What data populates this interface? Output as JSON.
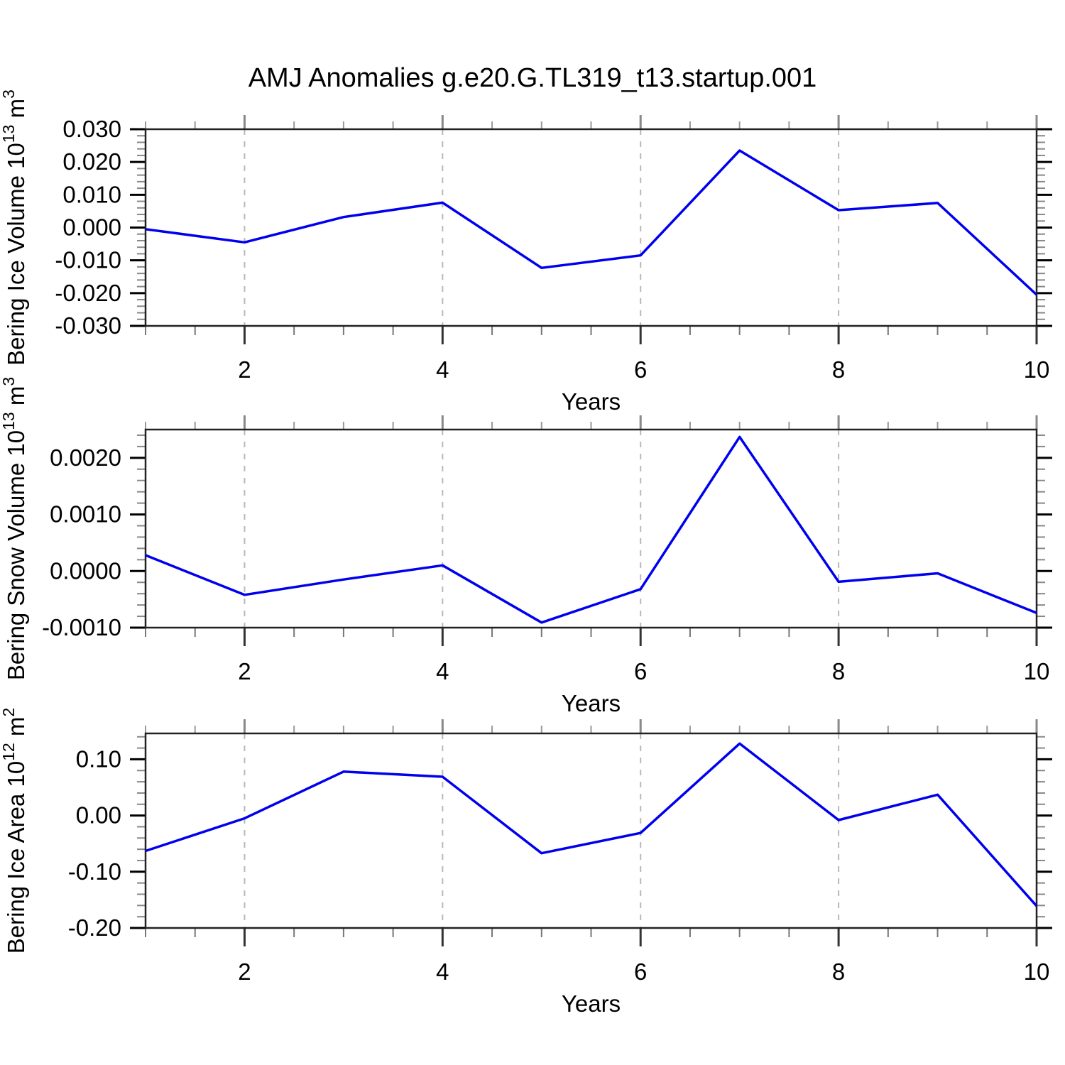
{
  "title": "AMJ Anomalies g.e20.G.TL319_t13.startup.001",
  "line_color": "#0000ee",
  "grid_color": "#b8b8b8",
  "chart_data": [
    {
      "type": "line",
      "ylabel": "Bering Ice Volume 10^13 m^3",
      "ylabel_parts": [
        {
          "text": "Bering Ice Volume 10",
          "sup": false
        },
        {
          "text": "13",
          "sup": true
        },
        {
          "text": " m",
          "sup": false
        },
        {
          "text": "3",
          "sup": true
        }
      ],
      "xlabel": "Years",
      "x": [
        1,
        2,
        3,
        4,
        5,
        6,
        7,
        8,
        9,
        10
      ],
      "values": [
        -0.0005,
        -0.0045,
        0.0032,
        0.0076,
        -0.0123,
        -0.0085,
        0.0235,
        0.0053,
        0.0075,
        -0.0205
      ],
      "xlim": [
        1,
        10
      ],
      "ylim": [
        -0.03,
        0.03
      ],
      "ytick_values": [
        0.03,
        0.02,
        0.01,
        0.0,
        -0.01,
        -0.02,
        -0.03
      ],
      "ytick_labels": [
        "0.030",
        "0.020",
        "0.010",
        "0.000",
        "-0.010",
        "-0.020",
        "-0.030"
      ],
      "ytick_minor_step": 0.002,
      "xticks_labeled": [
        2,
        4,
        6,
        8,
        10
      ],
      "xtick_minor_step": 0.5,
      "gridlines_x": [
        2,
        4,
        6,
        8
      ],
      "grid": "vertical-dashed",
      "legend": "none"
    },
    {
      "type": "line",
      "ylabel": "Bering Snow Volume 10^13 m^3",
      "ylabel_parts": [
        {
          "text": "Bering Snow Volume 10",
          "sup": false
        },
        {
          "text": "13",
          "sup": true
        },
        {
          "text": " m",
          "sup": false
        },
        {
          "text": "3",
          "sup": true
        }
      ],
      "xlabel": "Years",
      "x": [
        1,
        2,
        3,
        4,
        5,
        6,
        7,
        8,
        9,
        10
      ],
      "values": [
        0.00028,
        -0.00042,
        -0.00015,
        0.0001,
        -0.00091,
        -0.00032,
        0.00237,
        -0.00019,
        -4e-05,
        -0.00074
      ],
      "xlim": [
        1,
        10
      ],
      "ylim": [
        -0.001,
        0.0025
      ],
      "ytick_values": [
        0.002,
        0.001,
        0.0,
        -0.001
      ],
      "ytick_labels": [
        "0.0020",
        "0.0010",
        "0.0000",
        "-0.0010"
      ],
      "ytick_minor_step": 0.0002,
      "xticks_labeled": [
        2,
        4,
        6,
        8,
        10
      ],
      "xtick_minor_step": 0.5,
      "gridlines_x": [
        2,
        4,
        6,
        8
      ],
      "grid": "vertical-dashed",
      "legend": "none"
    },
    {
      "type": "line",
      "ylabel": "Bering Ice Area 10^12 m^2",
      "ylabel_parts": [
        {
          "text": "Bering Ice Area 10",
          "sup": false
        },
        {
          "text": "12",
          "sup": true
        },
        {
          "text": " m",
          "sup": false
        },
        {
          "text": "2",
          "sup": true
        }
      ],
      "xlabel": "Years",
      "x": [
        1,
        2,
        3,
        4,
        5,
        6,
        7,
        8,
        9,
        10
      ],
      "values": [
        -0.063,
        -0.005,
        0.078,
        0.069,
        -0.067,
        -0.031,
        0.128,
        -0.008,
        0.037,
        -0.161
      ],
      "xlim": [
        1,
        10
      ],
      "ylim": [
        -0.2,
        0.146
      ],
      "ytick_values": [
        0.1,
        0.0,
        -0.1,
        -0.2
      ],
      "ytick_labels": [
        "0.10",
        "0.00",
        "-0.10",
        "-0.20"
      ],
      "ytick_minor_step": 0.02,
      "xticks_labeled": [
        2,
        4,
        6,
        8,
        10
      ],
      "xtick_minor_step": 0.5,
      "gridlines_x": [
        2,
        4,
        6,
        8
      ],
      "grid": "vertical-dashed",
      "legend": "none"
    }
  ]
}
